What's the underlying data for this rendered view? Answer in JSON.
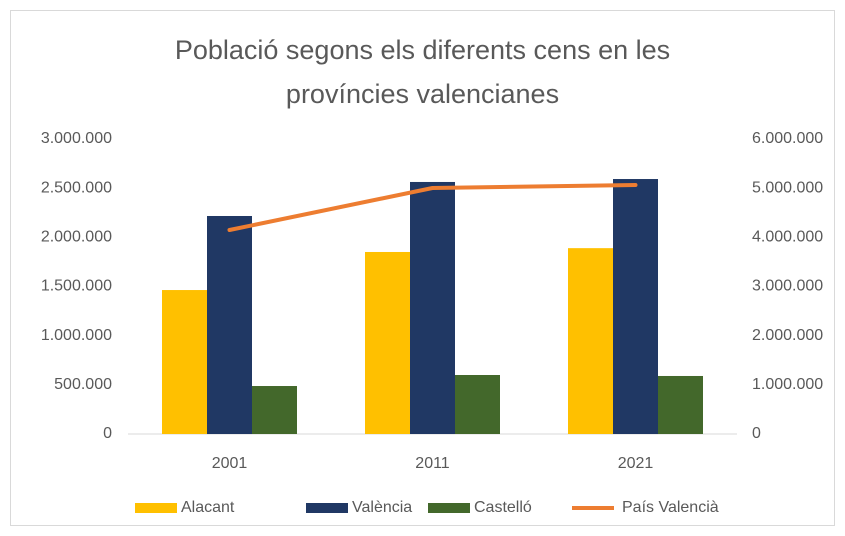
{
  "chart_data": {
    "type": "bar",
    "title": "Població segons els diferents cens en les províncies valencianes",
    "categories": [
      "2001",
      "2011",
      "2021"
    ],
    "series": [
      {
        "name": "Alacant",
        "color": "#ffc000",
        "values": [
          1464000,
          1851000,
          1890000
        ]
      },
      {
        "name": "València",
        "color": "#203864",
        "values": [
          2217000,
          2563000,
          2593000
        ]
      },
      {
        "name": "Castelló",
        "color": "#43682b",
        "values": [
          488000,
          600000,
          590000
        ]
      },
      {
        "name": "País Valencià",
        "color": "#ed7d31",
        "type": "line",
        "axis": "y2",
        "values": [
          4149000,
          5003000,
          5064000
        ]
      }
    ],
    "ylim": [
      0,
      3000000
    ],
    "yticks": [
      0,
      {
        "value": 500000,
        "label": "500.000"
      },
      {
        "value": 1000000,
        "label": "1.000.000"
      },
      {
        "value": 1500000,
        "label": "1.500.000"
      },
      {
        "value": 2000000,
        "label": "2.000.000"
      },
      {
        "value": 2500000,
        "label": "2.500.000"
      },
      {
        "value": 3000000,
        "label": "3.000.000"
      }
    ],
    "y2lim": [
      0,
      6000000
    ],
    "y2ticks": [
      0,
      {
        "value": 1000000,
        "label": "1.000.000"
      },
      {
        "value": 2000000,
        "label": "2.000.000"
      },
      {
        "value": 3000000,
        "label": "3.000.000"
      },
      {
        "value": 4000000,
        "label": "4.000.000"
      },
      {
        "value": 5000000,
        "label": "5.000.000"
      },
      {
        "value": 6000000,
        "label": "6.000.000"
      }
    ],
    "grid": false,
    "legend": "bottom"
  }
}
